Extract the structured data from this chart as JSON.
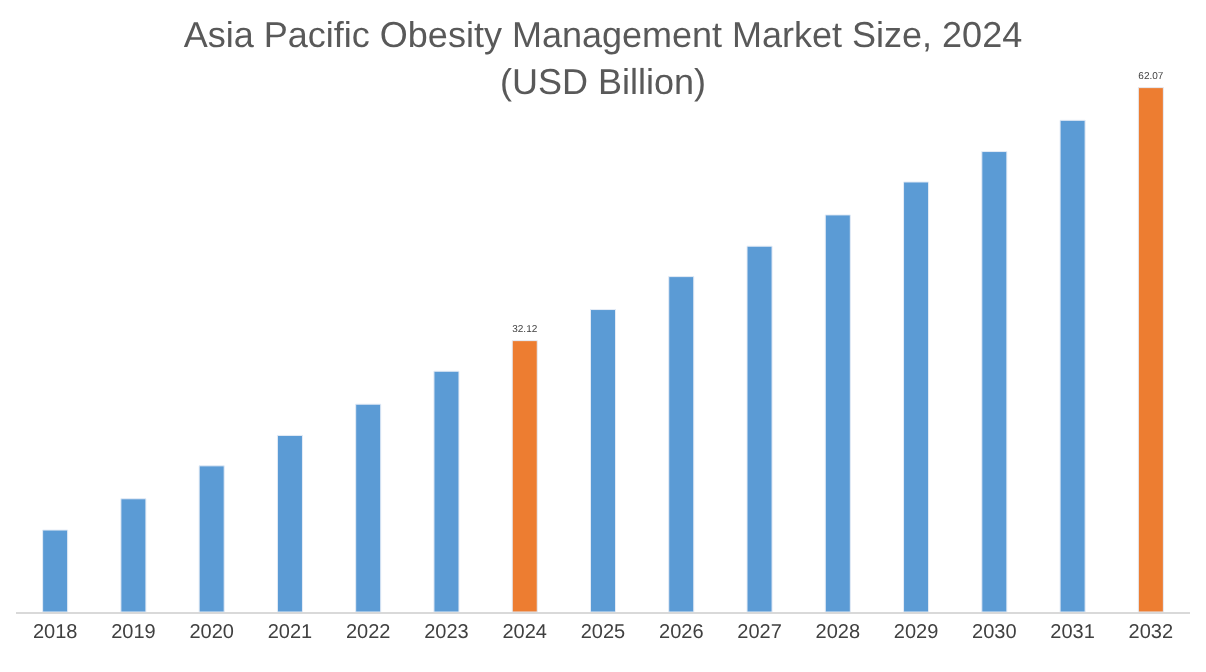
{
  "chart_data": {
    "type": "bar",
    "title": "Asia Pacific Obesity Management Market Size, 2024\n(USD Billion)",
    "categories": [
      "2018",
      "2019",
      "2020",
      "2021",
      "2022",
      "2023",
      "2024",
      "2025",
      "2026",
      "2027",
      "2028",
      "2029",
      "2030",
      "2031",
      "2032"
    ],
    "values": [
      9.7,
      13.4,
      17.3,
      20.9,
      24.6,
      28.5,
      32.12,
      35.8,
      39.7,
      43.3,
      47.0,
      50.9,
      54.5,
      58.2,
      62.07
    ],
    "colors": [
      "#5b9bd5",
      "#5b9bd5",
      "#5b9bd5",
      "#5b9bd5",
      "#5b9bd5",
      "#5b9bd5",
      "#ed7d31",
      "#5b9bd5",
      "#5b9bd5",
      "#5b9bd5",
      "#5b9bd5",
      "#5b9bd5",
      "#5b9bd5",
      "#5b9bd5",
      "#ed7d31"
    ],
    "value_labels": [
      null,
      null,
      null,
      null,
      null,
      null,
      "32.12",
      null,
      null,
      null,
      null,
      null,
      null,
      null,
      "62.07"
    ],
    "tick_labels": "x"
  }
}
